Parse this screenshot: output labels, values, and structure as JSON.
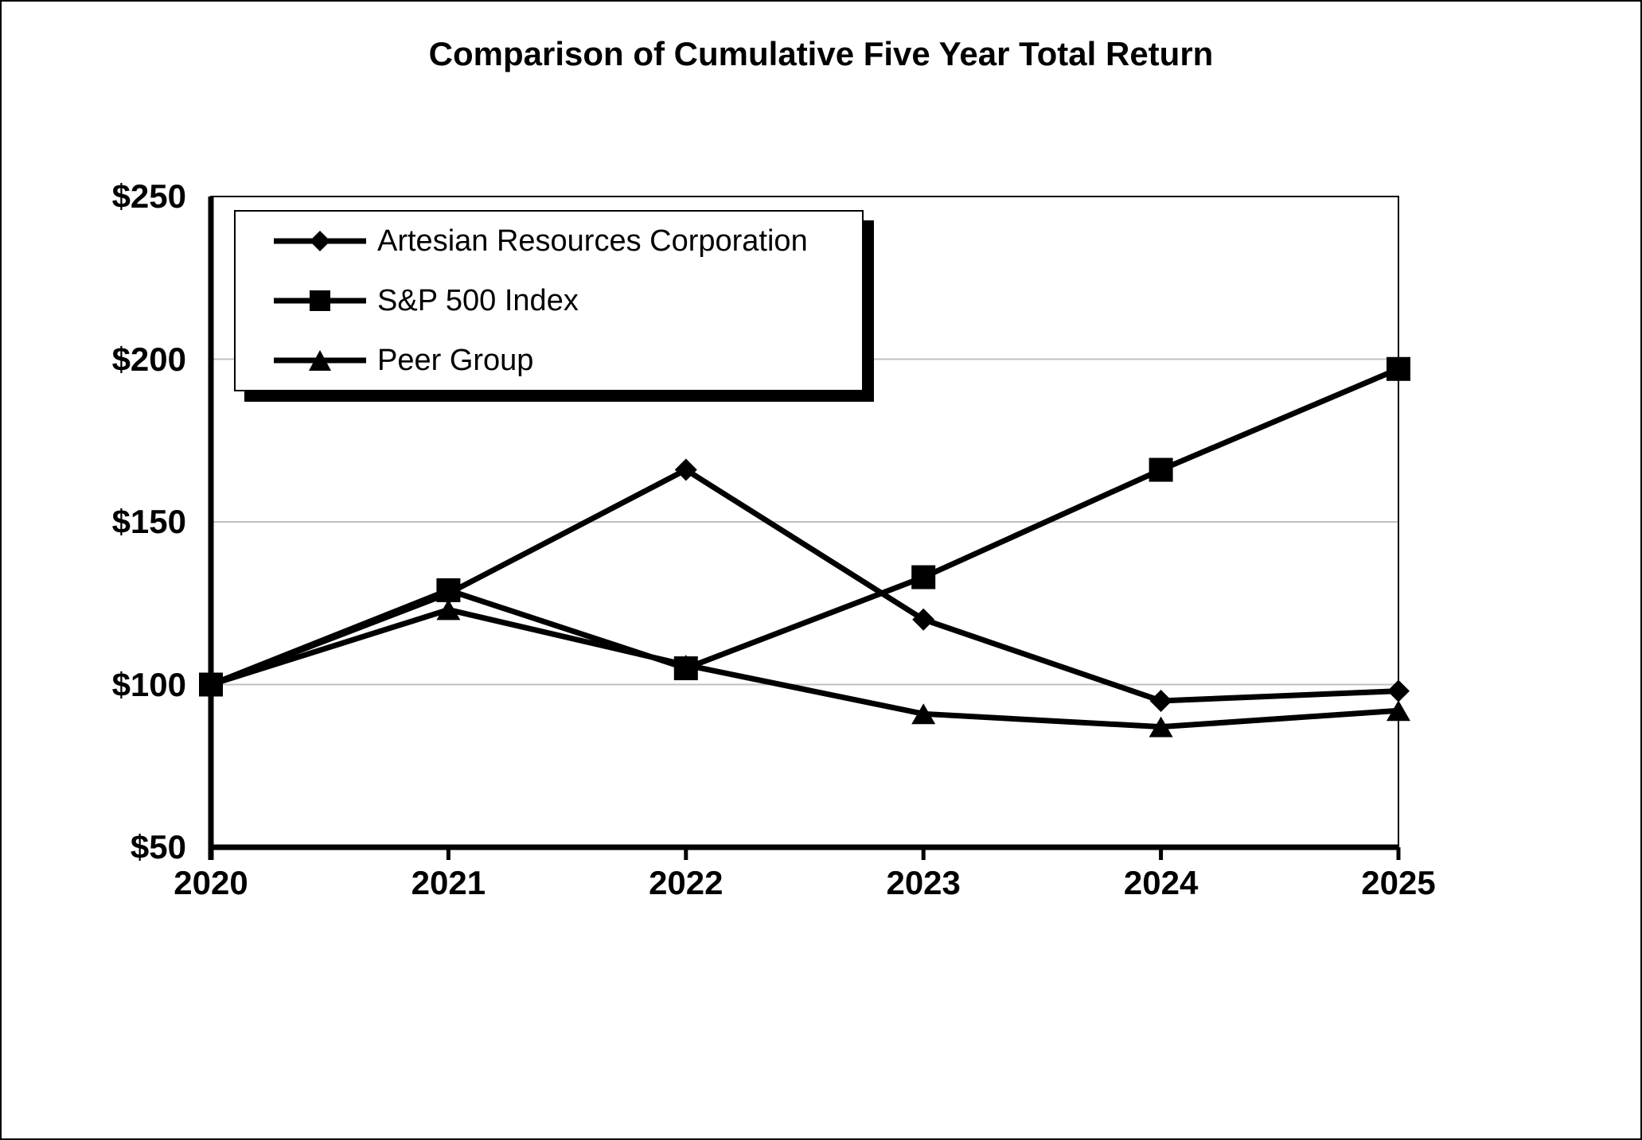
{
  "page": {
    "title": "Comparison of Cumulative Five Year Total Return"
  },
  "chart_data": {
    "type": "line",
    "title": "Comparison of Cumulative Five Year Total Return",
    "categories": [
      "2020",
      "2021",
      "2022",
      "2023",
      "2024",
      "2025"
    ],
    "series": [
      {
        "name": "Artesian Resources Corporation",
        "marker": "diamond",
        "values": [
          100,
          128,
          166,
          120,
          95,
          98
        ]
      },
      {
        "name": "S&P 500 Index",
        "marker": "square",
        "values": [
          100,
          129,
          105,
          133,
          166,
          197
        ]
      },
      {
        "name": "Peer Group",
        "marker": "triangle",
        "values": [
          100,
          123,
          106,
          91,
          87,
          92
        ]
      }
    ],
    "xlabel": "",
    "ylabel": "",
    "ylim": [
      50,
      250
    ],
    "y_tick_values": [
      250,
      200,
      150,
      100,
      50
    ],
    "y_tick_labels": [
      "$250",
      "$200",
      "$150",
      "$100",
      "$50"
    ],
    "grid": true,
    "grid_values": [
      200,
      150,
      100
    ],
    "legend_position": "top-left",
    "line_color": "#000000",
    "grid_color": "#c0c0c0",
    "background_color": "#ffffff"
  }
}
